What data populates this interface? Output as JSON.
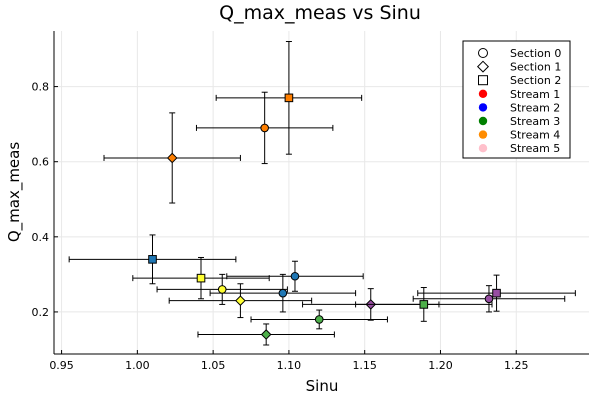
{
  "chart_data": {
    "type": "scatter",
    "title": "Q_max_meas vs Sinu",
    "xlabel": "Sinu",
    "ylabel": "Q_max_meas",
    "xlim": [
      0.945,
      1.298
    ],
    "ylim": [
      0.088,
      0.948
    ],
    "xticks": [
      0.95,
      1.0,
      1.05,
      1.1,
      1.15,
      1.2,
      1.25
    ],
    "xtick_labels": [
      "0.95",
      "1.00",
      "1.05",
      "1.10",
      "1.15",
      "1.20",
      "1.25"
    ],
    "yticks": [
      0.2,
      0.4,
      0.6,
      0.8
    ],
    "ytick_labels": [
      "0.2",
      "0.4",
      "0.6",
      "0.8"
    ],
    "grid": true,
    "legend_position": "top-right",
    "legend": [
      {
        "label": "Section 0",
        "marker": "circle",
        "color": "#ffffff"
      },
      {
        "label": "Section 1",
        "marker": "diamond",
        "color": "#ffffff"
      },
      {
        "label": "Section 2",
        "marker": "square",
        "color": "#ffffff"
      },
      {
        "label": "Stream 1",
        "marker": "dot",
        "color": "#ff0000"
      },
      {
        "label": "Stream 2",
        "marker": "dot",
        "color": "#0000ff"
      },
      {
        "label": "Stream 3",
        "marker": "dot",
        "color": "#008000"
      },
      {
        "label": "Stream 4",
        "marker": "dot",
        "color": "#ff8c00"
      },
      {
        "label": "Stream 5",
        "marker": "dot",
        "color": "#ffc0cb"
      }
    ],
    "points": [
      {
        "x": 1.104,
        "y": 0.295,
        "xerr": 0.045,
        "yerr": 0.04,
        "marker": "circle",
        "color": "#1f77b4"
      },
      {
        "x": 1.096,
        "y": 0.25,
        "xerr": 0.048,
        "yerr": 0.05,
        "marker": "circle",
        "color": "#1f77b4"
      },
      {
        "x": 1.056,
        "y": 0.26,
        "xerr": 0.043,
        "yerr": 0.04,
        "marker": "circle",
        "color": "#ffff33"
      },
      {
        "x": 1.12,
        "y": 0.18,
        "xerr": 0.045,
        "yerr": 0.025,
        "marker": "circle",
        "color": "#4daf4a"
      },
      {
        "x": 1.084,
        "y": 0.69,
        "xerr": 0.045,
        "yerr": 0.095,
        "marker": "circle",
        "color": "#ff7f00"
      },
      {
        "x": 1.232,
        "y": 0.235,
        "xerr": 0.05,
        "yerr": 0.035,
        "marker": "circle",
        "color": "#984ea3"
      },
      {
        "x": 1.023,
        "y": 0.61,
        "xerr": 0.045,
        "yerr": 0.12,
        "marker": "diamond",
        "color": "#ff7f00"
      },
      {
        "x": 1.068,
        "y": 0.23,
        "xerr": 0.047,
        "yerr": 0.045,
        "marker": "diamond",
        "color": "#ffff33"
      },
      {
        "x": 1.085,
        "y": 0.14,
        "xerr": 0.045,
        "yerr": 0.028,
        "marker": "diamond",
        "color": "#4daf4a"
      },
      {
        "x": 1.154,
        "y": 0.22,
        "xerr": 0.045,
        "yerr": 0.042,
        "marker": "diamond",
        "color": "#984ea3"
      },
      {
        "x": 1.1,
        "y": 0.77,
        "xerr": 0.048,
        "yerr": 0.15,
        "marker": "square",
        "color": "#ff7f00"
      },
      {
        "x": 1.01,
        "y": 0.34,
        "xerr": 0.055,
        "yerr": 0.065,
        "marker": "square",
        "color": "#1f77b4"
      },
      {
        "x": 1.042,
        "y": 0.29,
        "xerr": 0.045,
        "yerr": 0.055,
        "marker": "square",
        "color": "#ffff33"
      },
      {
        "x": 1.189,
        "y": 0.22,
        "xerr": 0.045,
        "yerr": 0.045,
        "marker": "square",
        "color": "#4daf4a"
      },
      {
        "x": 1.237,
        "y": 0.25,
        "xerr": 0.052,
        "yerr": 0.048,
        "marker": "square",
        "color": "#984ea3"
      }
    ]
  }
}
